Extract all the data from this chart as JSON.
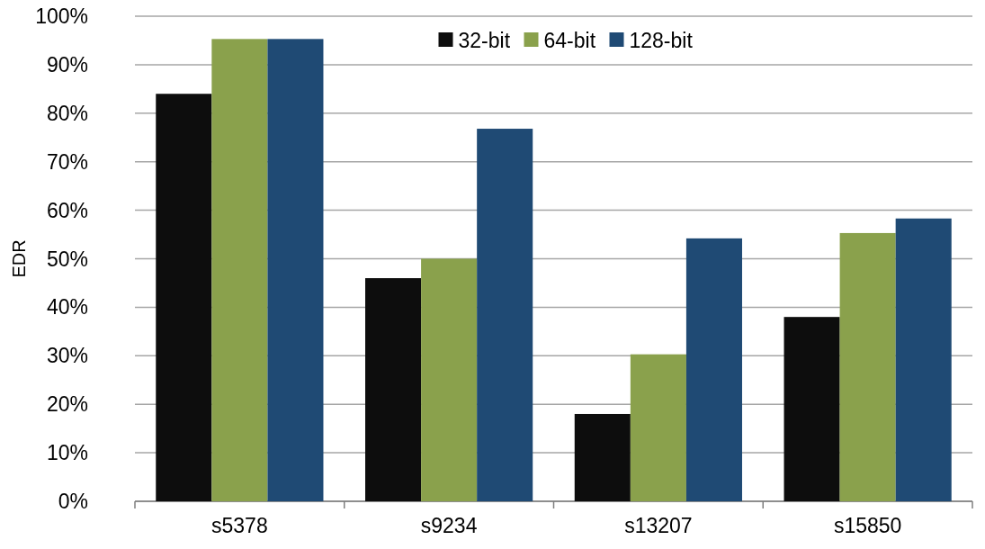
{
  "chart_data": {
    "type": "bar",
    "ylabel": "EDR",
    "categories": [
      "s5378",
      "s9234",
      "s13207",
      "s15850"
    ],
    "series": [
      {
        "name": "32-bit",
        "color": "#0d0d0d",
        "values": [
          84,
          46,
          18,
          38
        ]
      },
      {
        "name": "64-bit",
        "color": "#8aa14c",
        "values": [
          95.3,
          50,
          30.3,
          55.3
        ]
      },
      {
        "name": "128-bit",
        "color": "#1f4a74",
        "values": [
          95.3,
          76.8,
          54.2,
          58.3
        ]
      }
    ],
    "ylim": [
      0,
      100
    ],
    "yticks": [
      {
        "value": 0,
        "label": "0%"
      },
      {
        "value": 10,
        "label": "10%"
      },
      {
        "value": 20,
        "label": "20%"
      },
      {
        "value": 30,
        "label": "30%"
      },
      {
        "value": 40,
        "label": "40%"
      },
      {
        "value": 50,
        "label": "50%"
      },
      {
        "value": 60,
        "label": "60%"
      },
      {
        "value": 70,
        "label": "70%"
      },
      {
        "value": 80,
        "label": "80%"
      },
      {
        "value": 90,
        "label": "90%"
      },
      {
        "value": 100,
        "label": "100%"
      }
    ],
    "grid": "y",
    "legend": "top"
  }
}
